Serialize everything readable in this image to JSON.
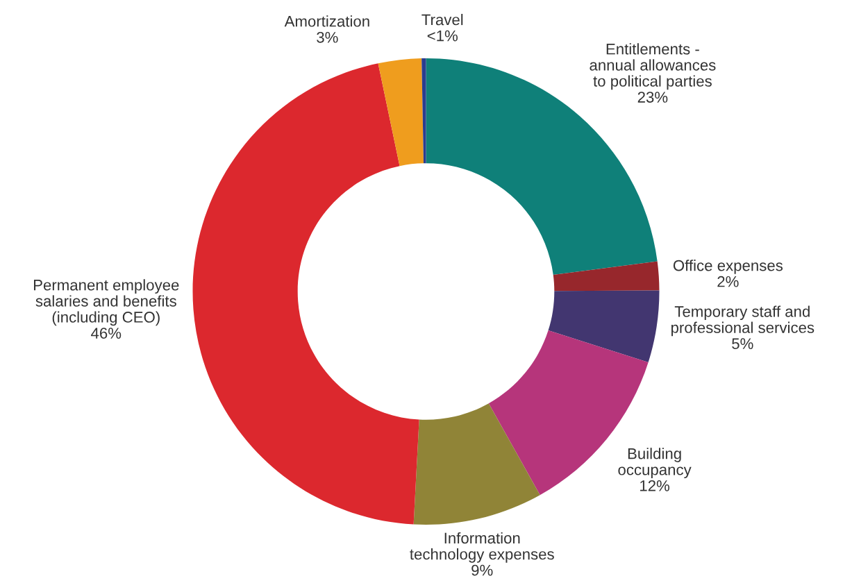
{
  "chart_data": {
    "type": "donut",
    "categories": [
      "Entitlements -\nannual allowances\nto political parties",
      "Office expenses",
      "Temporary staff and\nprofessional services",
      "Building\noccupancy",
      "Information\ntechnology expenses",
      "Permanent employee\nsalaries and benefits\n(including CEO)",
      "Amortization",
      "Travel"
    ],
    "values": [
      23,
      2,
      5,
      12,
      9,
      46,
      3,
      0.3
    ],
    "value_labels": [
      "23%",
      "2%",
      "5%",
      "12%",
      "9%",
      "46%",
      "3%",
      "<1%"
    ],
    "colors": [
      "#0f8079",
      "#97272c",
      "#423670",
      "#b6357b",
      "#908437",
      "#dc282e",
      "#ef9d1e",
      "#2a3d8f"
    ]
  }
}
